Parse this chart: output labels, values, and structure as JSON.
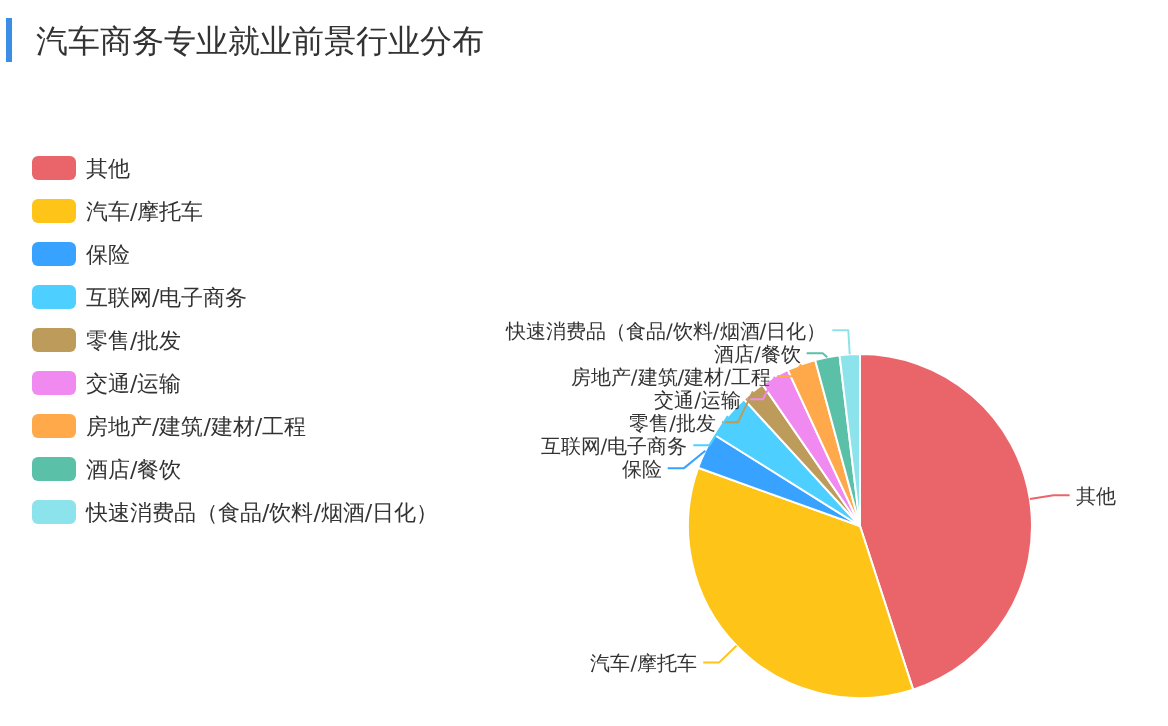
{
  "chart_data": {
    "type": "pie",
    "title": "汽车商务专业就业前景行业分布",
    "categories": [
      "其他",
      "汽车/摩托车",
      "保险",
      "互联网/电子商务",
      "零售/批发",
      "交通/运输",
      "房地产/建筑/建材/工程",
      "酒店/餐饮",
      "快速消费品（食品/饮料/烟酒/日化）"
    ],
    "values": [
      45,
      35.5,
      3.4,
      4.3,
      2.2,
      2.7,
      2.7,
      2.3,
      1.9
    ],
    "colors": [
      "#e9656a",
      "#fec418",
      "#37a2ff",
      "#4dcfff",
      "#bd9b5b",
      "#f08af0",
      "#ffa94a",
      "#5bc0a8",
      "#8de3ec"
    ],
    "legend": "left"
  }
}
